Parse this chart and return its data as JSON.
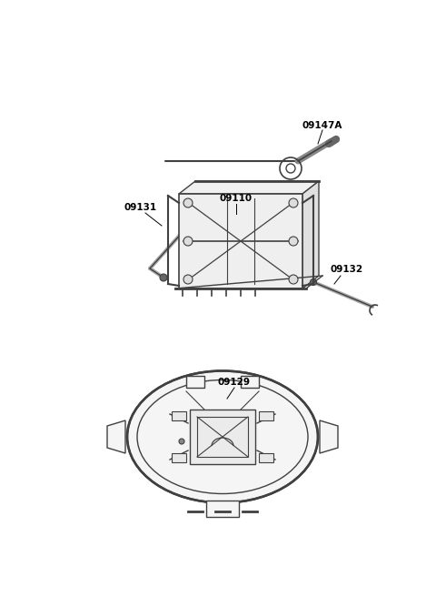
{
  "bg_color": "#ffffff",
  "line_color": "#404040",
  "label_color": "#000000",
  "lw": 0.9,
  "label_font_size": 7.5,
  "fig_w": 4.8,
  "fig_h": 6.56,
  "dpi": 100
}
